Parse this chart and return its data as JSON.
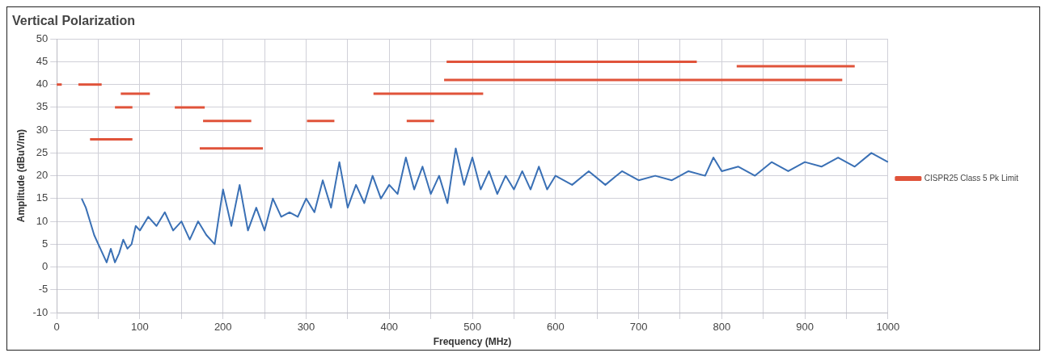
{
  "chart_data": {
    "type": "line",
    "title": "Vertical Polarization",
    "xlabel": "Frequency (MHz)",
    "ylabel": "Amplitude (dBuV/m)",
    "xlim": [
      0,
      1000
    ],
    "ylim": [
      -10,
      50
    ],
    "xticks": [
      0,
      {
        "value": 50,
        "label": null
      },
      100,
      {
        "value": 150,
        "label": null
      },
      200,
      {
        "value": 250,
        "label": null
      },
      300,
      {
        "value": 350,
        "label": null
      },
      400,
      {
        "value": 450,
        "label": null
      },
      500,
      {
        "value": 550,
        "label": null
      },
      600,
      {
        "value": 650,
        "label": null
      },
      700,
      {
        "value": 750,
        "label": null
      },
      800,
      {
        "value": 850,
        "label": null
      },
      900,
      {
        "value": 950,
        "label": null
      },
      1000
    ],
    "yticks": [
      -10,
      -5,
      0,
      5,
      10,
      15,
      20,
      25,
      30,
      35,
      40,
      45,
      50
    ],
    "grid": true,
    "legend": "right",
    "marker": "none",
    "line_style": "solid",
    "series": [
      {
        "color": "#3a70b5",
        "x": [
          30,
          35,
          40,
          45,
          50,
          55,
          60,
          65,
          70,
          75,
          80,
          85,
          90,
          95,
          100,
          110,
          120,
          130,
          140,
          150,
          160,
          170,
          180,
          190,
          200,
          210,
          220,
          230,
          240,
          250,
          260,
          270,
          280,
          290,
          300,
          310,
          320,
          330,
          340,
          350,
          360,
          370,
          380,
          390,
          400,
          410,
          420,
          430,
          440,
          450,
          460,
          470,
          480,
          490,
          500,
          510,
          520,
          530,
          540,
          550,
          560,
          570,
          580,
          590,
          600,
          620,
          640,
          660,
          680,
          700,
          720,
          740,
          760,
          780,
          790,
          800,
          820,
          840,
          860,
          880,
          900,
          920,
          940,
          960,
          980,
          1000
        ],
        "values": [
          15,
          13,
          10,
          7,
          5,
          3,
          1,
          4,
          1,
          3,
          6,
          4,
          5,
          9,
          8,
          11,
          9,
          12,
          8,
          10,
          6,
          10,
          7,
          5,
          17,
          9,
          18,
          8,
          13,
          8,
          15,
          11,
          12,
          11,
          15,
          12,
          19,
          13,
          23,
          13,
          18,
          14,
          20,
          15,
          18,
          16,
          24,
          17,
          22,
          16,
          20,
          14,
          26,
          18,
          24,
          17,
          21,
          16,
          20,
          17,
          21,
          17,
          22,
          17,
          20,
          18,
          21,
          18,
          21,
          19,
          20,
          19,
          21,
          20,
          24,
          21,
          22,
          20,
          23,
          21,
          23,
          22,
          24,
          22,
          25,
          23
        ]
      },
      {
        "name": "CISPR25 Class 5 Pk Limit",
        "color": "#e0533a",
        "x": [
          26,
          54
        ],
        "values": [
          40,
          40
        ]
      },
      {
        "color": "#e0533a",
        "x": [
          0,
          6
        ],
        "values": [
          40,
          40
        ]
      },
      {
        "color": "#e0533a",
        "x": [
          40,
          91
        ],
        "values": [
          28,
          28
        ]
      },
      {
        "color": "#e0533a",
        "x": [
          70,
          91
        ],
        "values": [
          35,
          35
        ]
      },
      {
        "color": "#e0533a",
        "x": [
          77,
          112
        ],
        "values": [
          38,
          38
        ]
      },
      {
        "color": "#e0533a",
        "x": [
          142,
          178
        ],
        "values": [
          35,
          35
        ]
      },
      {
        "color": "#e0533a",
        "x": [
          176,
          234
        ],
        "values": [
          32,
          32
        ]
      },
      {
        "color": "#e0533a",
        "x": [
          172,
          248
        ],
        "values": [
          26,
          26
        ]
      },
      {
        "color": "#e0533a",
        "x": [
          301,
          334
        ],
        "values": [
          32,
          32
        ]
      },
      {
        "color": "#e0533a",
        "x": [
          381,
          513
        ],
        "values": [
          38,
          38
        ]
      },
      {
        "color": "#e0533a",
        "x": [
          421,
          454
        ],
        "values": [
          32,
          32
        ]
      },
      {
        "color": "#e0533a",
        "x": [
          469,
          770
        ],
        "values": [
          45,
          45
        ]
      },
      {
        "color": "#e0533a",
        "x": [
          466,
          945
        ],
        "values": [
          41,
          41
        ]
      },
      {
        "color": "#e0533a",
        "x": [
          818,
          960
        ],
        "values": [
          44,
          44
        ]
      }
    ]
  }
}
